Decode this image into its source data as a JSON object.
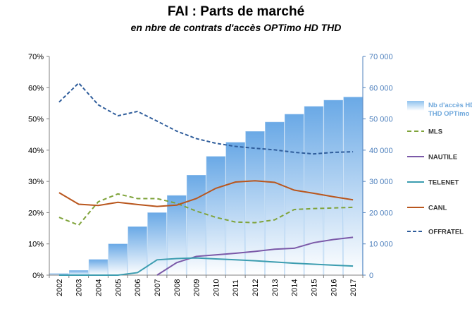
{
  "chart_data": {
    "type": "bar+line",
    "title": "FAI : Parts de marché",
    "subtitle": "en nbre de contrats d'accès OPTimo HD THD",
    "categories": [
      "2002",
      "2003",
      "2004",
      "2005",
      "2006",
      "2007",
      "2008",
      "2009",
      "2010",
      "2011",
      "2012",
      "2013",
      "2014",
      "2015",
      "2016",
      "2017"
    ],
    "left_axis": {
      "min": 0,
      "max": 0.7,
      "ticks": [
        "0%",
        "10%",
        "20%",
        "30%",
        "40%",
        "50%",
        "60%",
        "70%"
      ]
    },
    "right_axis": {
      "min": 0,
      "max": 70000,
      "ticks": [
        "0",
        "10 000",
        "20 000",
        "30 000",
        "40 000",
        "50 000",
        "60 000",
        "70 000"
      ]
    },
    "bar_series": {
      "name": "Nb d'accès HD THD OPTimo",
      "name_lines": [
        "Nb d'accès HD",
        "THD OPTimo"
      ],
      "color": "#7fb5e8",
      "values": [
        500,
        1500,
        5000,
        10000,
        15500,
        20000,
        25500,
        32000,
        38000,
        42500,
        46000,
        49000,
        51500,
        54000,
        56000,
        57000
      ]
    },
    "series": [
      {
        "name": "MLS",
        "color": "#7fa33a",
        "dash": "6,4",
        "values": [
          0.185,
          0.16,
          0.235,
          0.26,
          0.245,
          0.245,
          0.23,
          0.205,
          0.185,
          0.17,
          0.168,
          0.177,
          0.21,
          0.213,
          0.215,
          0.217
        ]
      },
      {
        "name": "NAUTILE",
        "color": "#7b59a8",
        "dash": "",
        "values": [
          null,
          null,
          null,
          null,
          null,
          0,
          0.04,
          0.06,
          0.065,
          0.07,
          0.076,
          0.083,
          0.086,
          0.104,
          0.114,
          0.121
        ]
      },
      {
        "name": "TELENET",
        "color": "#3c9db0",
        "dash": "",
        "values": [
          0,
          0,
          0,
          0,
          0.008,
          0.049,
          0.053,
          0.055,
          0.052,
          0.049,
          0.046,
          0.042,
          0.038,
          0.035,
          0.032,
          0.029
        ]
      },
      {
        "name": "CANL",
        "color": "#b9561d",
        "dash": "",
        "values": [
          0.264,
          0.227,
          0.223,
          0.233,
          0.226,
          0.22,
          0.224,
          0.245,
          0.278,
          0.298,
          0.302,
          0.297,
          0.272,
          0.262,
          0.251,
          0.241
        ]
      },
      {
        "name": "OFFRATEL",
        "color": "#2f5d9b",
        "dash": "5,3",
        "values": [
          0.554,
          0.615,
          0.545,
          0.51,
          0.524,
          0.493,
          0.461,
          0.437,
          0.422,
          0.412,
          0.406,
          0.401,
          0.393,
          0.388,
          0.393,
          0.395
        ]
      }
    ],
    "legend_position": "right",
    "grid": false
  }
}
